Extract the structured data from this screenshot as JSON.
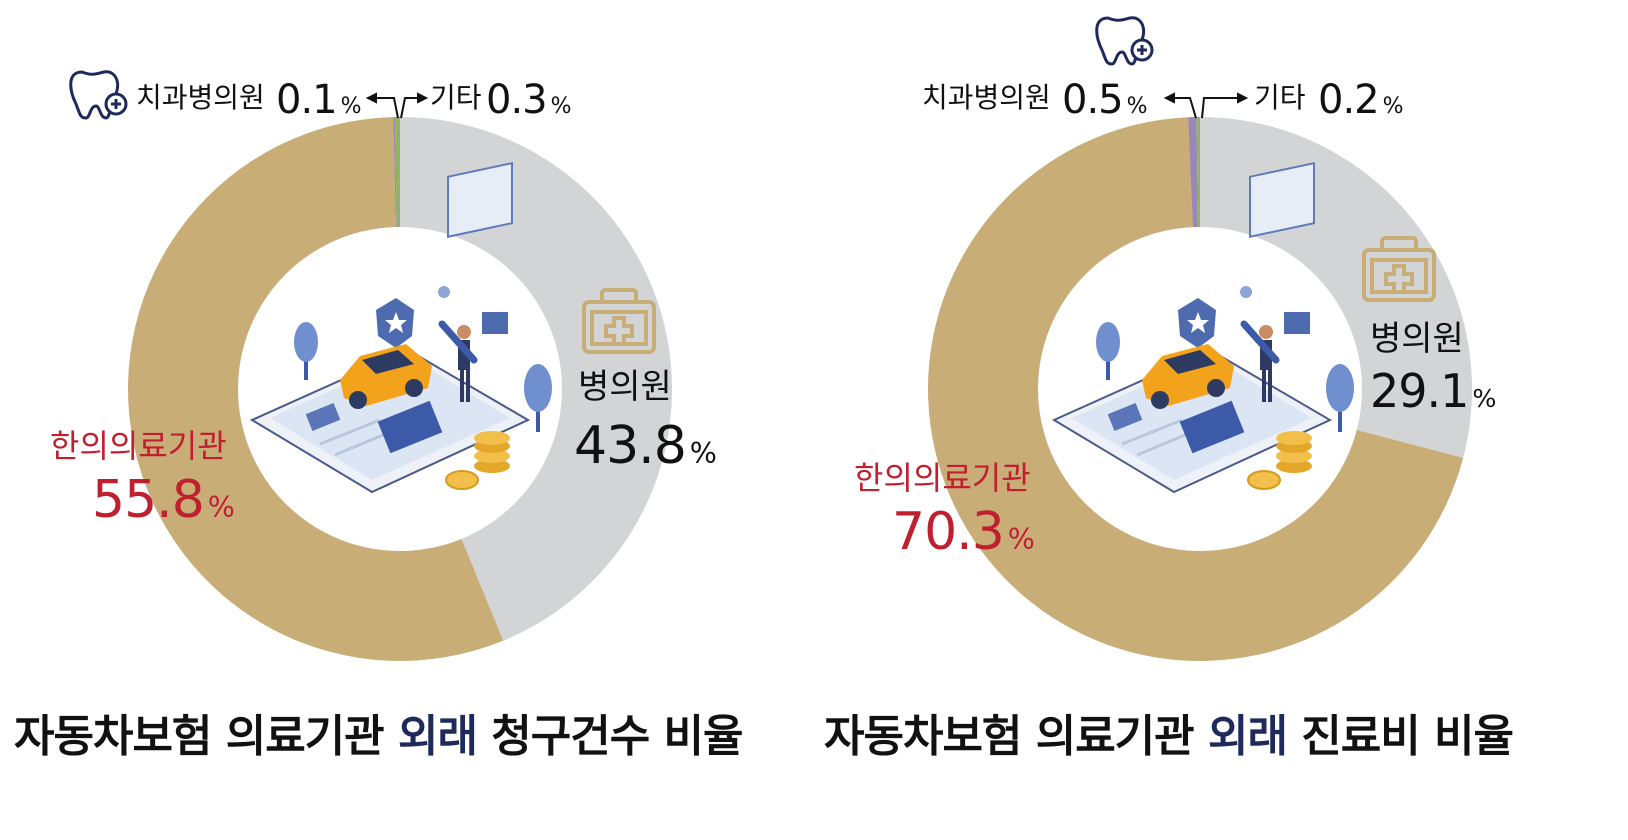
{
  "colors": {
    "hanui": "#c9ad77",
    "hospital": "#d3d4d6",
    "dental": "#9b86b8",
    "other": "#8db85a",
    "accent_red": "#c01f2f",
    "title_highlight": "#1f2a5c",
    "icon_line": "#c9ad77",
    "dental_icon": "#1f2a5c"
  },
  "chart_data": [
    {
      "type": "pie",
      "variant": "donut",
      "title_parts": {
        "before": "자동차보험 의료기관 ",
        "highlight": "외래",
        "after": " 청구건수 비율"
      },
      "categories": [
        "병의원",
        "한의의료기관",
        "치과병의원",
        "기타"
      ],
      "values": [
        43.8,
        55.8,
        0.1,
        0.3
      ],
      "display": {
        "hospital": {
          "name": "병의원",
          "value": "43.8",
          "unit": "%"
        },
        "hanui": {
          "name": "한의의료기관",
          "value": "55.8",
          "unit": "%"
        },
        "dental": {
          "name": "치과병의원",
          "value": "0.1",
          "unit": "%"
        },
        "other": {
          "name": "기타",
          "value": "0.3",
          "unit": "%"
        }
      }
    },
    {
      "type": "pie",
      "variant": "donut",
      "title_parts": {
        "before": "자동차보험 의료기관 ",
        "highlight": "외래",
        "after": " 진료비 비율"
      },
      "categories": [
        "병의원",
        "한의의료기관",
        "치과병의원",
        "기타"
      ],
      "values": [
        29.1,
        70.3,
        0.5,
        0.2
      ],
      "display": {
        "hospital": {
          "name": "병의원",
          "value": "29.1",
          "unit": "%"
        },
        "hanui": {
          "name": "한의의료기관",
          "value": "70.3",
          "unit": "%"
        },
        "dental": {
          "name": "치과병의원",
          "value": "0.5",
          "unit": "%"
        },
        "other": {
          "name": "기타",
          "value": "0.2",
          "unit": "%"
        }
      }
    }
  ],
  "icons": [
    "medical-kit-icon",
    "gift-box-icon",
    "dental-clinic-icon",
    "car-insurance-illustration"
  ]
}
